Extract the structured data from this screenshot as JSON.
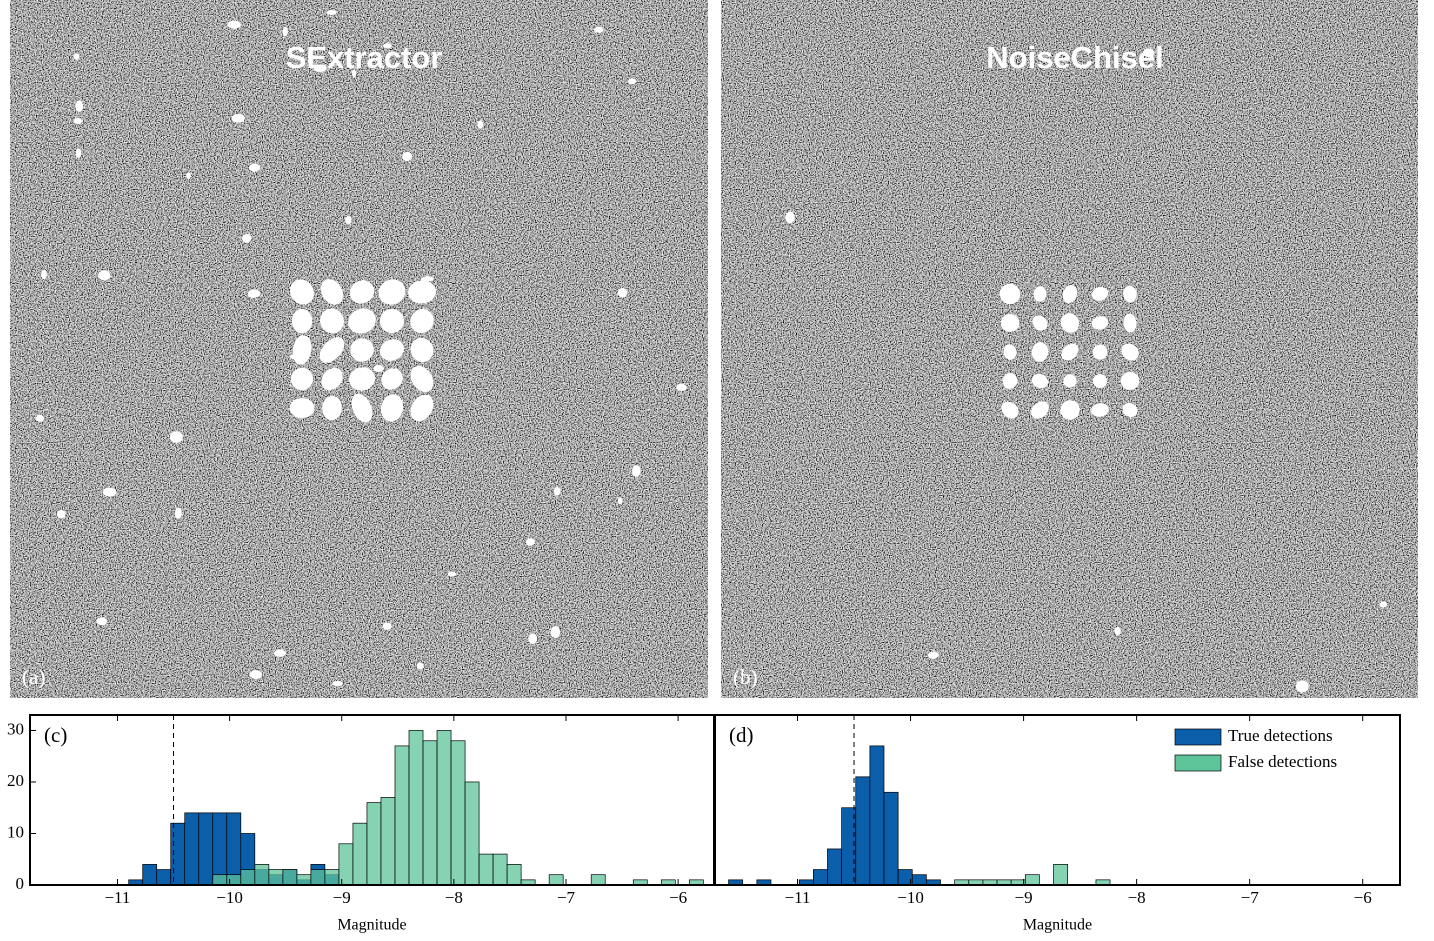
{
  "panels": [
    {
      "title": "SExtractor",
      "label": "(a)"
    },
    {
      "title": "NoiseChisel",
      "label": "(b)"
    }
  ],
  "chart_data": [
    {
      "type": "histogram",
      "label": "(c)",
      "x_label": "Magnitude",
      "xlim": [
        -11.78,
        -5.68
      ],
      "xticks": [
        {
          "value": -11,
          "label": "−11"
        },
        {
          "value": -10,
          "label": "−10"
        },
        {
          "value": -9,
          "label": "−9"
        },
        {
          "value": -8,
          "label": "−8"
        },
        {
          "value": -7,
          "label": "−7"
        },
        {
          "value": -6,
          "label": "−6"
        }
      ],
      "ylim": [
        0,
        33
      ],
      "yticks": [
        0,
        10,
        20,
        30
      ],
      "threshold": -10.5,
      "bins": [
        -10.9,
        -10.775,
        -10.65,
        -10.525,
        -10.4,
        -10.275,
        -10.15,
        -10.025,
        -9.9,
        -9.775,
        -9.65,
        -9.525,
        -9.4,
        -9.275,
        -9.15,
        -9.025,
        -8.9,
        -8.775,
        -8.65,
        -8.525,
        -8.4,
        -8.275,
        -8.15,
        -8.025,
        -7.9,
        -7.775,
        -7.65,
        -7.525,
        -7.4,
        -7.275,
        -7.15,
        -7.025,
        -6.9,
        -6.775,
        -6.65,
        -6.525,
        -6.4,
        -6.275,
        -6.15,
        -6.025,
        -5.9,
        -5.775
      ],
      "series": [
        {
          "name": "True detections",
          "color": "#0a5eaa",
          "values": [
            1,
            4,
            3,
            12,
            14,
            14,
            14,
            14,
            10,
            3,
            2,
            3,
            1,
            4,
            2,
            0,
            0,
            0,
            0,
            0,
            0,
            0,
            0,
            0,
            0,
            0,
            0,
            0,
            0,
            0,
            0,
            0,
            0,
            0,
            0,
            0,
            0,
            0,
            0,
            0,
            0
          ]
        },
        {
          "name": "False detections",
          "color": "#5ec499",
          "values": [
            0,
            0,
            0,
            0,
            0,
            0,
            2,
            2,
            3,
            4,
            3,
            3,
            2,
            3,
            3,
            8,
            12,
            16,
            17,
            27,
            30,
            28,
            30,
            28,
            20,
            6,
            6,
            4,
            1,
            0,
            2,
            0,
            0,
            2,
            0,
            0,
            1,
            0,
            1,
            0,
            1
          ]
        }
      ]
    },
    {
      "type": "histogram",
      "label": "(d)",
      "x_label": "Magnitude",
      "xlim": [
        -11.73,
        -5.67
      ],
      "xticks": [
        {
          "value": -11,
          "label": "−11"
        },
        {
          "value": -10,
          "label": "−10"
        },
        {
          "value": -9,
          "label": "−9"
        },
        {
          "value": -8,
          "label": "−8"
        },
        {
          "value": -7,
          "label": "−7"
        },
        {
          "value": -6,
          "label": "−6"
        }
      ],
      "ylim": [
        0,
        33
      ],
      "threshold": -10.5,
      "legend": "upper right",
      "bins": [
        -11.61,
        -11.485,
        -11.36,
        -11.235,
        -11.11,
        -10.985,
        -10.86,
        -10.735,
        -10.61,
        -10.485,
        -10.36,
        -10.235,
        -10.11,
        -9.985,
        -9.86,
        -9.735,
        -9.61,
        -9.485,
        -9.36,
        -9.235,
        -9.11,
        -8.985,
        -8.86,
        -8.735,
        -8.61,
        -8.485,
        -8.36,
        -8.235
      ],
      "series": [
        {
          "name": "True detections",
          "color": "#0a5eaa",
          "values": [
            1,
            0,
            1,
            0,
            0,
            1,
            3,
            7,
            15,
            21,
            27,
            18,
            3,
            2,
            1,
            0,
            0,
            0,
            0,
            0,
            0,
            0,
            0,
            0,
            0,
            0,
            0
          ]
        },
        {
          "name": "False detections",
          "color": "#5ec499",
          "values": [
            0,
            0,
            0,
            0,
            0,
            0,
            0,
            0,
            0,
            0,
            0,
            0,
            0,
            0,
            0,
            0,
            1,
            1,
            1,
            1,
            1,
            2,
            0,
            4,
            0,
            0,
            1
          ]
        }
      ]
    }
  ]
}
